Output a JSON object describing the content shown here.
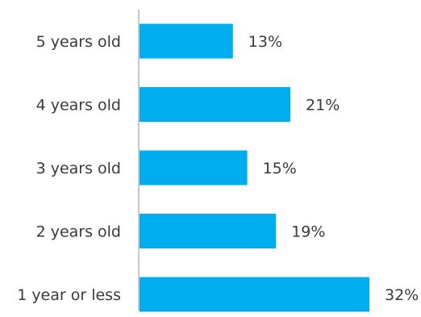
{
  "chart_data": {
    "type": "bar",
    "orientation": "horizontal",
    "categories": [
      "5 years old",
      "4 years old",
      "3 years old",
      "2 years old",
      "1 year or less"
    ],
    "values": [
      13,
      21,
      15,
      19,
      32
    ],
    "value_labels": [
      "13%",
      "21%",
      "15%",
      "19%",
      "32%"
    ],
    "unit": "%",
    "xlim": [
      0,
      32
    ],
    "grid": false,
    "legend": "none",
    "bar_color": "#00AEEF",
    "axis_color": "#c8c8c8",
    "text_color": "#3a3a3a"
  }
}
